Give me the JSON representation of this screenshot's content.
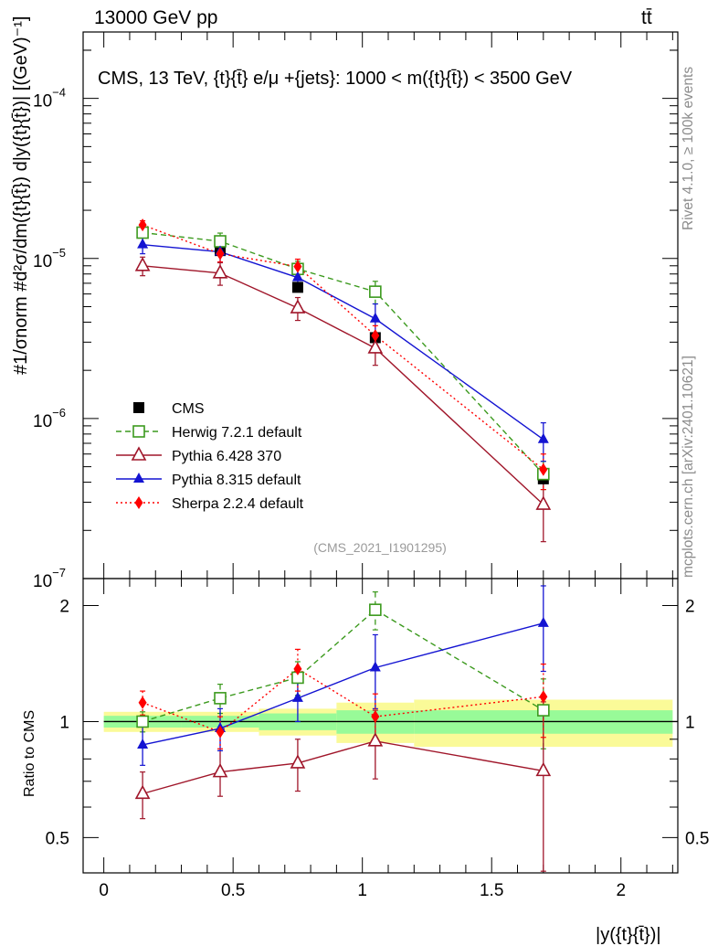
{
  "header": {
    "left": "13000 GeV pp",
    "right": "tt̄"
  },
  "side_labels": {
    "rivet": "Rivet 4.1.0, ≥ 100k events",
    "plots": "mcplots.cern.ch [arXiv:2401.10621]"
  },
  "watermark": "(CMS_2021_I1901295)",
  "colors": {
    "cms": "#000000",
    "herwig": "#3c9a1e",
    "pythia6": "#a0162a",
    "pythia8": "#1414d2",
    "sherpa": "#ff0000",
    "band_inner": "#98fa98",
    "band_outer": "#fafa98"
  },
  "chart_data": [
    {
      "type": "line",
      "panel": "main",
      "title": "CMS, 13 TeV, {t}{t̄} e/μ +{jets}: 1000 < m({t}{t̄}) < 3500 GeV",
      "ylabel": "#1/σnorm #d²σ/dm({t}{t̄}) d|y({t}{t̄})| [(GeV)⁻¹]",
      "yscale": "log",
      "ylim": [
        1e-07,
        0.00026
      ],
      "xlim": [
        -0.08,
        2.22
      ],
      "y_ticks": [
        {
          "value": 0.0001,
          "base": "10",
          "exp": "−4"
        },
        {
          "value": 1e-05,
          "base": "10",
          "exp": "−5"
        },
        {
          "value": 1e-06,
          "base": "10",
          "exp": "−6"
        },
        {
          "value": 1e-07,
          "base": "10",
          "exp": "−7"
        }
      ],
      "x": [
        0.15,
        0.45,
        0.75,
        1.05,
        1.7
      ],
      "series": [
        {
          "name": "CMS",
          "key": "cms",
          "marker": "square-filled",
          "line": "none",
          "values": [
            1.45e-05,
            1.12e-05,
            6.6e-06,
            3.2e-06,
            4.2e-07
          ]
        },
        {
          "name": "Herwig 7.2.1 default",
          "key": "herwig",
          "marker": "square-open",
          "line": "dashed",
          "values": [
            1.45e-05,
            1.28e-05,
            8.6e-06,
            6.2e-06,
            4.5e-07
          ],
          "err": [
            1e-06,
            1.6e-06,
            1e-06,
            1e-06,
            9e-08
          ]
        },
        {
          "name": "Pythia 6.428 370",
          "key": "pythia6",
          "marker": "triangle-open",
          "line": "solid",
          "values": [
            9e-06,
            8.1e-06,
            4.9e-06,
            2.75e-06,
            2.9e-07
          ],
          "err": [
            1.2e-06,
            1.3e-06,
            8e-07,
            6e-07,
            1.2e-07
          ]
        },
        {
          "name": "Pythia 8.315 default",
          "key": "pythia8",
          "marker": "triangle-filled",
          "line": "solid",
          "values": [
            1.22e-05,
            1.1e-05,
            7.6e-06,
            4.2e-06,
            7.4e-07
          ],
          "err": [
            1.5e-06,
            1.5e-06,
            1.3e-06,
            1e-06,
            2e-07
          ]
        },
        {
          "name": "Sherpa 2.2.4 default",
          "key": "sherpa",
          "marker": "diamond-filled",
          "line": "dotted",
          "values": [
            1.62e-05,
            1.07e-05,
            8.9e-06,
            3.3e-06,
            4.8e-07
          ],
          "err": [
            1e-06,
            1.2e-06,
            1e-06,
            5e-07,
            1.2e-07
          ]
        }
      ],
      "legend": {
        "placement": "lower-left"
      }
    },
    {
      "type": "line",
      "panel": "ratio",
      "ylabel": "Ratio to CMS",
      "xlabel": "|y({t}{t̄})|",
      "yscale": "log",
      "ylim": [
        0.405,
        2.35
      ],
      "xlim": [
        -0.08,
        2.22
      ],
      "x_ticks": [
        "0",
        "0.5",
        "1",
        "1.5",
        "2"
      ],
      "x_tick_values": [
        0,
        0.5,
        1,
        1.5,
        2
      ],
      "y_ticks": [
        "0.5",
        "1",
        "2"
      ],
      "y_tick_values": [
        0.5,
        1,
        2
      ],
      "x": [
        0.15,
        0.45,
        0.75,
        1.05,
        1.7
      ],
      "uncertainty_band": {
        "bin_edges": [
          0,
          0.3,
          0.6,
          0.9,
          1.2,
          2.2
        ],
        "inner": [
          0.035,
          0.035,
          0.05,
          0.07,
          0.07
        ],
        "outer": [
          0.06,
          0.06,
          0.08,
          0.12,
          0.14
        ]
      },
      "series": [
        {
          "name": "Herwig 7.2.1 default",
          "key": "herwig",
          "marker": "square-open",
          "line": "dashed",
          "values": [
            1.0,
            1.15,
            1.3,
            1.95,
            1.07
          ],
          "err": [
            0.06,
            0.1,
            0.13,
            0.22,
            0.22
          ]
        },
        {
          "name": "Pythia 6.428 370",
          "key": "pythia6",
          "marker": "triangle-open",
          "line": "solid",
          "values": [
            0.65,
            0.74,
            0.78,
            0.89,
            0.745
          ],
          "err": [
            0.09,
            0.1,
            0.12,
            0.18,
            0.38
          ]
        },
        {
          "name": "Pythia 8.315 default",
          "key": "pythia8",
          "marker": "triangle-filled",
          "line": "solid",
          "values": [
            0.87,
            0.96,
            1.15,
            1.38,
            1.8
          ],
          "err": [
            0.1,
            0.12,
            0.15,
            0.3,
            0.45
          ]
        },
        {
          "name": "Sherpa 2.2.4 default",
          "key": "sherpa",
          "marker": "diamond-filled",
          "line": "dotted",
          "values": [
            1.12,
            0.94,
            1.37,
            1.03,
            1.16
          ],
          "err": [
            0.08,
            0.09,
            0.17,
            0.15,
            0.25
          ]
        }
      ]
    }
  ]
}
